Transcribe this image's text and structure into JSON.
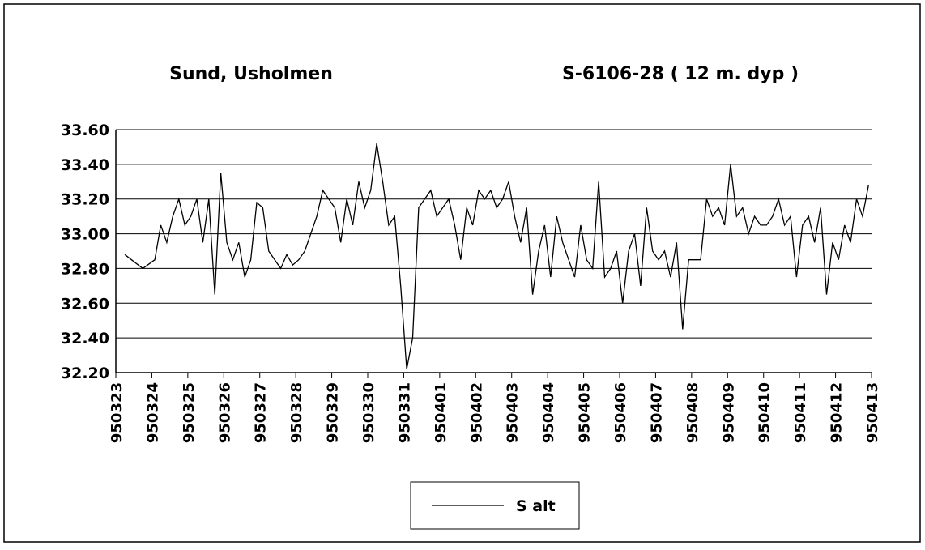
{
  "chart_data": {
    "type": "line",
    "title": "Sund, Usholmen",
    "subtitle": "S-6106-28  ( 12 m. dyp )",
    "xticks": [
      "950323",
      "950324",
      "950325",
      "950326",
      "950327",
      "950328",
      "950329",
      "950330",
      "950331",
      "950401",
      "950402",
      "950403",
      "950404",
      "950405",
      "950406",
      "950407",
      "950408",
      "950409",
      "950410",
      "950411",
      "950412",
      "950413"
    ],
    "ylim": [
      32.2,
      33.6
    ],
    "yticks": [
      {
        "value": 32.2,
        "label": "32.20"
      },
      {
        "value": 32.4,
        "label": "32.40"
      },
      {
        "value": 32.6,
        "label": "32.60"
      },
      {
        "value": 32.8,
        "label": "32.80"
      },
      {
        "value": 33.0,
        "label": "33.00"
      },
      {
        "value": 33.2,
        "label": "33.20"
      },
      {
        "value": 33.4,
        "label": "33.40"
      },
      {
        "value": 33.6,
        "label": "33.60"
      }
    ],
    "grid": true,
    "legend": "bottom",
    "x": [
      "950323",
      "950323",
      "950324",
      "950324",
      "950324",
      "950324",
      "950324",
      "950324",
      "950325",
      "950325",
      "950325",
      "950325",
      "950325",
      "950325",
      "950326",
      "950326",
      "950326",
      "950326",
      "950326",
      "950326",
      "950327",
      "950327",
      "950327",
      "950327",
      "950327",
      "950327",
      "950328",
      "950328",
      "950328",
      "950328",
      "950328",
      "950328",
      "950329",
      "950329",
      "950329",
      "950329",
      "950329",
      "950329",
      "950330",
      "950330",
      "950330",
      "950330",
      "950330",
      "950330",
      "950331",
      "950331",
      "950331",
      "950331",
      "950331",
      "950331",
      "950401",
      "950401",
      "950401",
      "950401",
      "950401",
      "950401",
      "950402",
      "950402",
      "950402",
      "950402",
      "950402",
      "950402",
      "950403",
      "950403",
      "950403",
      "950403",
      "950403",
      "950403",
      "950404",
      "950404",
      "950404",
      "950404",
      "950404",
      "950404",
      "950405",
      "950405",
      "950405",
      "950405",
      "950405",
      "950405",
      "950406",
      "950406",
      "950406",
      "950406",
      "950406",
      "950406",
      "950407",
      "950407",
      "950407",
      "950407",
      "950407",
      "950407",
      "950408",
      "950408",
      "950408",
      "950408",
      "950408",
      "950408",
      "950409",
      "950409",
      "950409",
      "950409",
      "950409",
      "950409",
      "950410",
      "950410",
      "950410",
      "950410",
      "950410",
      "950410",
      "950411",
      "950411",
      "950411",
      "950411",
      "950411",
      "950411",
      "950412",
      "950412",
      "950412",
      "950412",
      "950412",
      "950412"
    ],
    "series": [
      {
        "name": "S alt",
        "color": "#000000",
        "values": [
          32.88,
          32.8,
          32.85,
          33.05,
          32.95,
          33.1,
          33.2,
          33.05,
          33.1,
          33.2,
          32.95,
          33.2,
          32.65,
          33.35,
          32.95,
          32.85,
          32.95,
          32.75,
          32.85,
          33.18,
          33.15,
          32.9,
          32.85,
          32.8,
          32.88,
          32.82,
          32.85,
          32.9,
          33.0,
          33.1,
          33.25,
          33.2,
          33.15,
          32.95,
          33.2,
          33.05,
          33.3,
          33.15,
          33.25,
          33.52,
          33.3,
          33.05,
          33.1,
          32.7,
          32.22,
          32.4,
          33.15,
          33.2,
          33.25,
          33.1,
          33.15,
          33.2,
          33.05,
          32.85,
          33.15,
          33.05,
          33.25,
          33.2,
          33.25,
          33.15,
          33.2,
          33.3,
          33.1,
          32.95,
          33.15,
          32.65,
          32.9,
          33.05,
          32.75,
          33.1,
          32.95,
          32.85,
          32.75,
          33.05,
          32.85,
          32.8,
          33.3,
          32.75,
          32.8,
          32.9,
          32.6,
          32.9,
          33.0,
          32.7,
          33.15,
          32.9,
          32.85,
          32.9,
          32.75,
          32.95,
          32.45,
          32.85,
          32.85,
          32.85,
          33.2,
          33.1,
          33.15,
          33.05,
          33.4,
          33.1,
          33.15,
          33.0,
          33.1,
          33.05,
          33.05,
          33.1,
          33.2,
          33.05,
          33.1,
          32.75,
          33.05,
          33.1,
          32.95,
          33.15,
          32.65,
          32.95,
          32.85,
          33.05,
          32.95,
          33.2,
          33.1,
          33.28
        ]
      }
    ]
  }
}
